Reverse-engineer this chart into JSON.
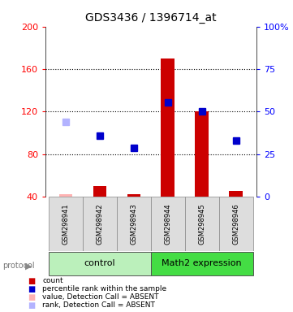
{
  "title": "GDS3436 / 1396714_at",
  "samples": [
    "GSM298941",
    "GSM298942",
    "GSM298943",
    "GSM298944",
    "GSM298945",
    "GSM298946"
  ],
  "count_values": [
    42,
    50,
    42,
    170,
    120,
    45
  ],
  "count_absent": [
    true,
    false,
    false,
    false,
    false,
    false
  ],
  "rank_values": [
    110,
    97,
    86,
    129,
    120,
    93
  ],
  "rank_absent": [
    true,
    false,
    false,
    false,
    false,
    false
  ],
  "ylim_left": [
    40,
    200
  ],
  "ylim_right": [
    0,
    100
  ],
  "yticks_left": [
    40,
    80,
    120,
    160,
    200
  ],
  "yticks_right": [
    0,
    25,
    50,
    75,
    100
  ],
  "yticklabels_right": [
    "0",
    "25",
    "50",
    "75",
    "100%"
  ],
  "gridlines": [
    80,
    120,
    160
  ],
  "color_count": "#cc0000",
  "color_count_absent": "#ffb3b3",
  "color_rank": "#0000cc",
  "color_rank_absent": "#b3b3ff",
  "color_control_bg": "#bbf0bb",
  "color_math2_bg": "#44dd44",
  "color_sample_bg": "#dddddd",
  "legend_items": [
    {
      "label": "count",
      "color": "#cc0000"
    },
    {
      "label": "percentile rank within the sample",
      "color": "#0000cc"
    },
    {
      "label": "value, Detection Call = ABSENT",
      "color": "#ffb3b3"
    },
    {
      "label": "rank, Detection Call = ABSENT",
      "color": "#b3b3ff"
    }
  ]
}
